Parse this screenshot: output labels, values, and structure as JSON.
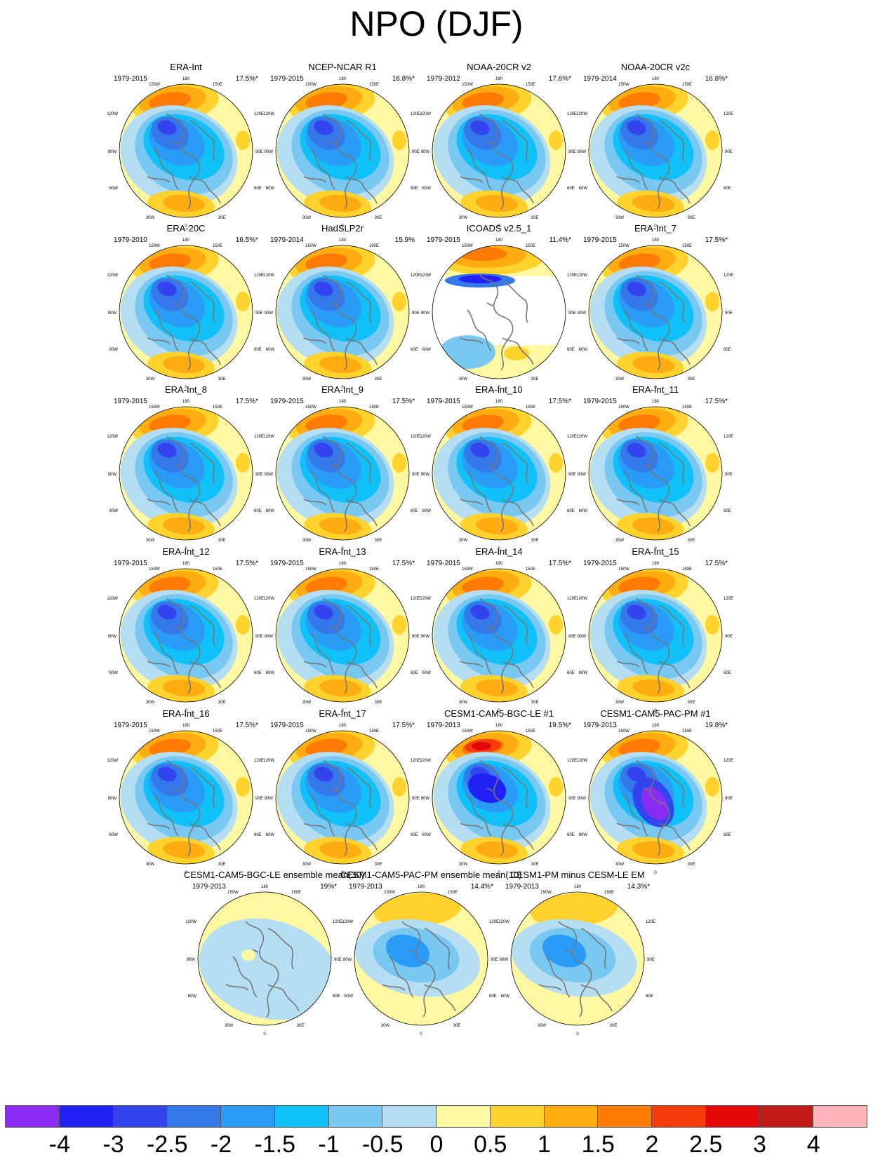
{
  "title": "NPO (DJF)",
  "colors": {
    "levels": [
      "#8b2cf5",
      "#2121f5",
      "#3344ee",
      "#3578ea",
      "#2a9bf7",
      "#10c0f8",
      "#78c8f2",
      "#b5def2",
      "#fff8a2",
      "#ffd22e",
      "#ffac10",
      "#ff7b05",
      "#f73c0c",
      "#e30808",
      "#c51a1a",
      "#ffb4bc"
    ],
    "land": "#777777"
  },
  "colorbar": {
    "labels": [
      "-4",
      "-3",
      "-2.5",
      "-2",
      "-1.5",
      "-1",
      "-0.5",
      "0",
      "0.5",
      "1",
      "1.5",
      "2",
      "2.5",
      "3",
      "4"
    ]
  },
  "map_ticks": {
    "top": "180",
    "nw": "150W",
    "ne": "150E",
    "w1": "120W",
    "e1": "120E",
    "w2": "90W",
    "e2": "90E",
    "w3": "60W",
    "e3": "60E",
    "sw": "30W",
    "se": "30E",
    "bottom": "0"
  },
  "panels": [
    {
      "title": "ERA-Int",
      "period": "1979-2015",
      "variance": "17.5%*",
      "pattern": "std"
    },
    {
      "title": "NCEP-NCAR R1",
      "period": "1979-2015",
      "variance": "16.8%*",
      "pattern": "std"
    },
    {
      "title": "NOAA-20CR v2",
      "period": "1979-2012",
      "variance": "17.6%*",
      "pattern": "std"
    },
    {
      "title": "NOAA-20CR v2c",
      "period": "1979-2014",
      "variance": "16.8%*",
      "pattern": "std"
    },
    {
      "title": "ERA-20C",
      "period": "1979-2010",
      "variance": "16.5%*",
      "pattern": "std"
    },
    {
      "title": "HadSLP2r",
      "period": "1979-2014",
      "variance": "15.9%",
      "pattern": "std"
    },
    {
      "title": "ICOADS v2.5_1",
      "period": "1979-2015",
      "variance": "11.4%*",
      "pattern": "icoads"
    },
    {
      "title": "ERA-Int_7",
      "period": "1979-2015",
      "variance": "17.5%*",
      "pattern": "std"
    },
    {
      "title": "ERA-Int_8",
      "period": "1979-2015",
      "variance": "17.5%*",
      "pattern": "std"
    },
    {
      "title": "ERA-Int_9",
      "period": "1979-2015",
      "variance": "17.5%*",
      "pattern": "std"
    },
    {
      "title": "ERA-Int_10",
      "period": "1979-2015",
      "variance": "17.5%*",
      "pattern": "std"
    },
    {
      "title": "ERA-Int_11",
      "period": "1979-2015",
      "variance": "17.5%*",
      "pattern": "std"
    },
    {
      "title": "ERA-Int_12",
      "period": "1979-2015",
      "variance": "17.5%*",
      "pattern": "std"
    },
    {
      "title": "ERA-Int_13",
      "period": "1979-2015",
      "variance": "17.5%*",
      "pattern": "std"
    },
    {
      "title": "ERA-Int_14",
      "period": "1979-2015",
      "variance": "17.5%*",
      "pattern": "std"
    },
    {
      "title": "ERA-Int_15",
      "period": "1979-2015",
      "variance": "17.5%*",
      "pattern": "std"
    },
    {
      "title": "ERA-Int_16",
      "period": "1979-2015",
      "variance": "17.5%*",
      "pattern": "std"
    },
    {
      "title": "ERA-Int_17",
      "period": "1979-2015",
      "variance": "17.5%*",
      "pattern": "std"
    },
    {
      "title": "CESM1-CAM5-BGC-LE #1",
      "period": "1979-2013",
      "variance": "19.5%*",
      "pattern": "le1"
    },
    {
      "title": "CESM1-CAM5-PAC-PM #1",
      "period": "1979-2013",
      "variance": "19.8%*",
      "pattern": "pm1"
    },
    {
      "title": "CESM1-CAM5-BGC-LE ensemble mean(30)",
      "period": "1979-2013",
      "variance": "19%*",
      "pattern": "lemean"
    },
    {
      "title": "CESM1-CAM5-PAC-PM ensemble mean(10)",
      "period": "1979-2013",
      "variance": "14.4%*",
      "pattern": "pmmean"
    },
    {
      "title": "CESM1-PM minus CESM-LE EM",
      "period": "1979-2013",
      "variance": "14.3%*",
      "pattern": "diff"
    }
  ]
}
